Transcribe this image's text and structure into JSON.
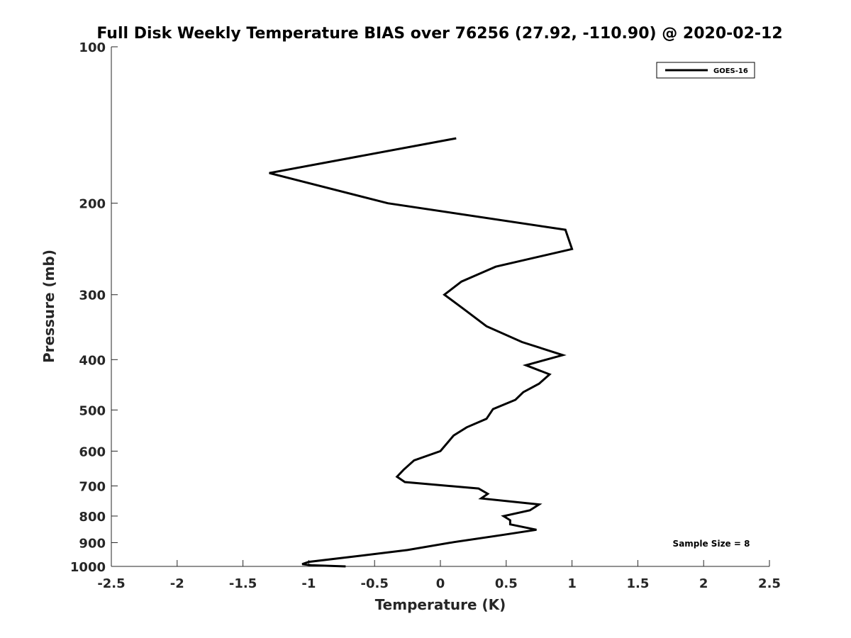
{
  "chart_data": {
    "type": "line",
    "title": "Full Disk Weekly Temperature BIAS over 76256 (27.92, -110.90) @ 2020-02-12",
    "xlabel": "Temperature (K)",
    "ylabel": "Pressure (mb)",
    "xlim": [
      -2.5,
      2.5
    ],
    "ylim": [
      100,
      1000
    ],
    "y_scale": "log",
    "y_reversed": true,
    "grid": false,
    "x_ticks": [
      "-2.5",
      "-2",
      "-1.5",
      "-1",
      "-0.5",
      "0",
      "0.5",
      "1",
      "1.5",
      "2",
      "2.5"
    ],
    "y_ticks": [
      "100",
      "200",
      "300",
      "400",
      "500",
      "600",
      "700",
      "800",
      "900",
      "1000"
    ],
    "legend_position": "top-right",
    "series": [
      {
        "name": "GOES-16",
        "color": "#000000",
        "x": [
          0.12,
          -1.3,
          -0.4,
          0.95,
          1.0,
          0.42,
          0.16,
          0.03,
          0.18,
          0.35,
          0.62,
          0.93,
          0.65,
          0.83,
          0.75,
          0.63,
          0.57,
          0.4,
          0.35,
          0.2,
          0.1,
          0.0,
          -0.2,
          -0.28,
          -0.33,
          -0.27,
          0.29,
          0.36,
          0.31,
          0.75,
          0.68,
          0.48,
          0.53,
          0.53,
          0.73,
          0.47,
          0.1,
          -0.25,
          -0.7,
          -1.0,
          -1.05,
          -0.98,
          -0.72
        ],
        "y": [
          150,
          175,
          200,
          225,
          245,
          265,
          283,
          300,
          320,
          345,
          370,
          392,
          410,
          427,
          445,
          462,
          478,
          498,
          520,
          540,
          560,
          600,
          625,
          652,
          672,
          688,
          708,
          725,
          740,
          760,
          780,
          800,
          815,
          830,
          850,
          870,
          898,
          930,
          960,
          980,
          990,
          995,
          1000
        ]
      }
    ],
    "annotations": [
      "Sample Size = 8"
    ]
  }
}
